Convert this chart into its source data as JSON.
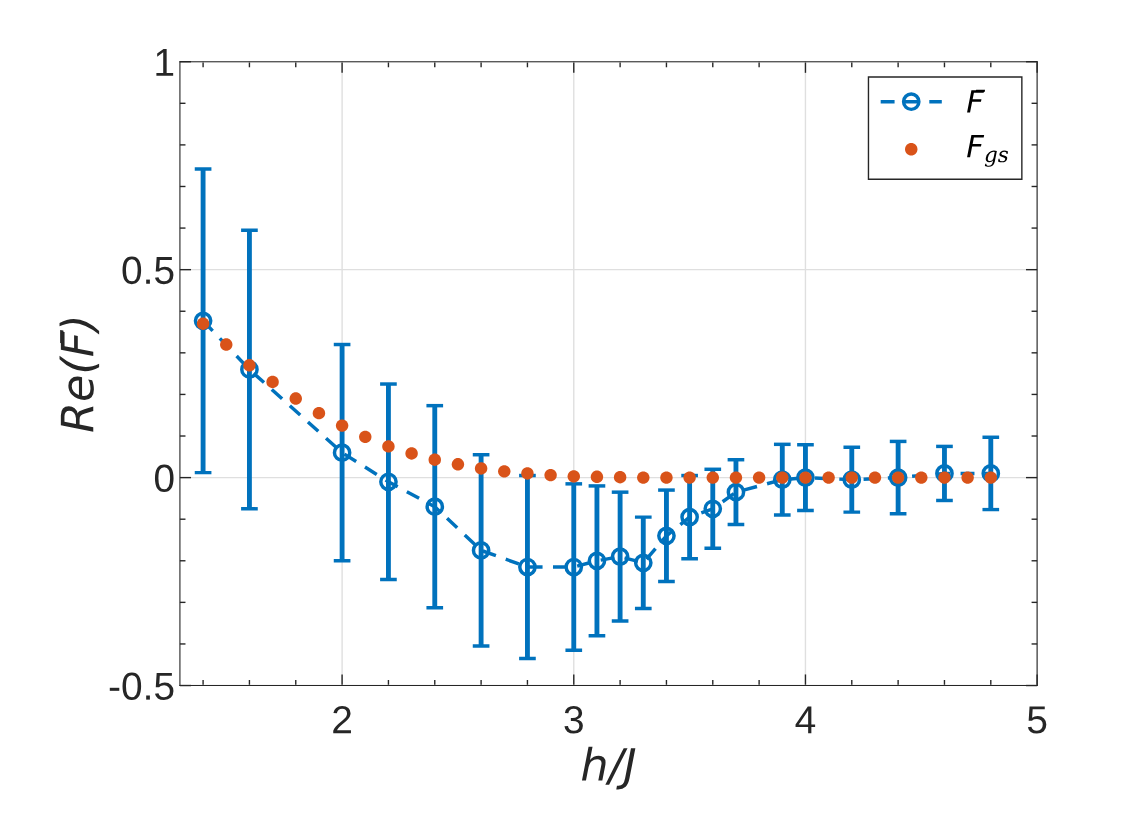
{
  "chart_data": {
    "type": "scatter",
    "xlabel": "h/J",
    "ylabel": "Re(F̄)",
    "xlim": [
      1.3,
      5
    ],
    "ylim": [
      -0.5,
      1
    ],
    "xticks": [
      2,
      3,
      4,
      5
    ],
    "yticks": [
      {
        "value": -0.5,
        "label": "-0.5"
      },
      0,
      0.5,
      1
    ],
    "grid": true,
    "legend": "top right",
    "series": [
      {
        "name": "F̄",
        "type": "line",
        "color": "#0072bd",
        "marker": "circle",
        "line_style": "dashed",
        "x": [
          1.4,
          1.6,
          2.0,
          2.2,
          2.4,
          2.6,
          2.8,
          3.0,
          3.1,
          3.2,
          3.3,
          3.4,
          3.5,
          3.6,
          3.7,
          3.9,
          4.0,
          4.2,
          4.4,
          4.6,
          4.8
        ],
        "values": [
          0.377,
          0.26,
          0.06,
          -0.01,
          -0.07,
          -0.175,
          -0.215,
          -0.215,
          -0.2,
          -0.19,
          -0.205,
          -0.14,
          -0.095,
          -0.075,
          -0.035,
          -0.005,
          0.0,
          -0.005,
          0.0,
          0.01,
          0.01
        ],
        "errors": [
          0.365,
          0.335,
          0.26,
          0.235,
          0.243,
          0.23,
          0.22,
          0.2,
          0.18,
          0.155,
          0.11,
          0.11,
          0.1,
          0.095,
          0.078,
          0.085,
          0.079,
          0.078,
          0.087,
          0.065,
          0.087
        ]
      },
      {
        "name": "F$_{gs}$",
        "color": "#d95319",
        "marker": "circle",
        "x": [
          1.4,
          1.5,
          1.6,
          1.7,
          1.8,
          1.9,
          2.0,
          2.1,
          2.2,
          2.3,
          2.4,
          2.5,
          2.6,
          2.7,
          2.8,
          2.9,
          3.0,
          3.1,
          3.2,
          3.3,
          3.4,
          3.5,
          3.6,
          3.7,
          3.8,
          3.9,
          4.0,
          4.1,
          4.2,
          4.3,
          4.4,
          4.5,
          4.6,
          4.7,
          4.8
        ],
        "values": [
          0.37,
          0.32,
          0.27,
          0.23,
          0.19,
          0.155,
          0.125,
          0.098,
          0.075,
          0.058,
          0.043,
          0.032,
          0.022,
          0.015,
          0.01,
          0.006,
          0.003,
          0.002,
          0.001,
          0,
          0,
          0,
          0,
          0,
          0,
          0,
          0,
          0,
          0,
          0,
          0,
          0,
          0,
          0,
          0
        ]
      }
    ]
  }
}
